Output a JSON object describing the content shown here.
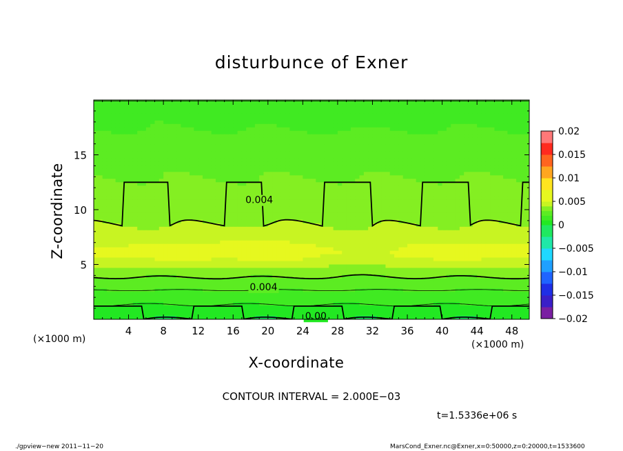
{
  "chart_data": {
    "type": "heatmap",
    "title": "disturbunce of Exner",
    "xlabel": "X-coordinate",
    "ylabel": "Z-coordinate",
    "x_unit": "(×1000 m)",
    "y_unit": "(×1000 m)",
    "xlim": [
      0,
      50
    ],
    "ylim": [
      0,
      20
    ],
    "x_ticks": [
      4,
      8,
      12,
      16,
      20,
      24,
      28,
      32,
      36,
      40,
      44,
      48
    ],
    "y_ticks": [
      5,
      10,
      15
    ],
    "colorbar": {
      "ticks": [
        0.02,
        0.015,
        0.01,
        0.005,
        0,
        -0.005,
        -0.01,
        -0.015,
        -0.02
      ],
      "tick_labels": [
        "0.02",
        "0.015",
        "0.01",
        "0.005",
        "0",
        "−0.005",
        "−0.01",
        "−0.015",
        "−0.02"
      ],
      "range": [
        -0.02,
        0.02
      ],
      "levels": [
        {
          "lo": -0.02,
          "hi": -0.0175,
          "color": "#7a1fa2"
        },
        {
          "lo": -0.0175,
          "hi": -0.015,
          "color": "#3a1fc8"
        },
        {
          "lo": -0.015,
          "hi": -0.0125,
          "color": "#1f2fe6"
        },
        {
          "lo": -0.0125,
          "hi": -0.01,
          "color": "#1f64ff"
        },
        {
          "lo": -0.01,
          "hi": -0.0075,
          "color": "#1fa0ff"
        },
        {
          "lo": -0.0075,
          "hi": -0.005,
          "color": "#1fd8ff"
        },
        {
          "lo": -0.005,
          "hi": -0.0025,
          "color": "#1fe8a8"
        },
        {
          "lo": -0.0025,
          "hi": 0.0,
          "color": "#1fe860"
        },
        {
          "lo": 0.0,
          "hi": 0.001,
          "color": "#22e822"
        },
        {
          "lo": 0.001,
          "hi": 0.002,
          "color": "#40ea22"
        },
        {
          "lo": 0.002,
          "hi": 0.003,
          "color": "#5cec22"
        },
        {
          "lo": 0.003,
          "hi": 0.004,
          "color": "#84ef22"
        },
        {
          "lo": 0.004,
          "hi": 0.005,
          "color": "#c8f422"
        },
        {
          "lo": 0.005,
          "hi": 0.0075,
          "color": "#e6f81f"
        },
        {
          "lo": 0.0075,
          "hi": 0.01,
          "color": "#ffe41f"
        },
        {
          "lo": 0.01,
          "hi": 0.0125,
          "color": "#ffa61f"
        },
        {
          "lo": 0.0125,
          "hi": 0.015,
          "color": "#ff641f"
        },
        {
          "lo": 0.015,
          "hi": 0.0175,
          "color": "#ff2a1f"
        },
        {
          "lo": 0.0175,
          "hi": 0.02,
          "color": "#ff7878"
        }
      ]
    },
    "contour_labels": [
      {
        "text": "0.004",
        "x": 19.0,
        "z": 10.9
      },
      {
        "text": "0.004",
        "x": 19.5,
        "z": 2.95
      },
      {
        "text": "0.00",
        "x": 25.5,
        "z": 0.3
      }
    ],
    "grid": false,
    "legend": "right (colorbar)"
  },
  "contour_interval": "CONTOUR INTERVAL = 2.000E−03",
  "time_label": "t=1.5336e+06 s",
  "footer_left": "./gpview−new  2011−11−20",
  "footer_right": "MarsCond_Exner.nc@Exner,x=0:50000,z=0:20000,t=1533600"
}
